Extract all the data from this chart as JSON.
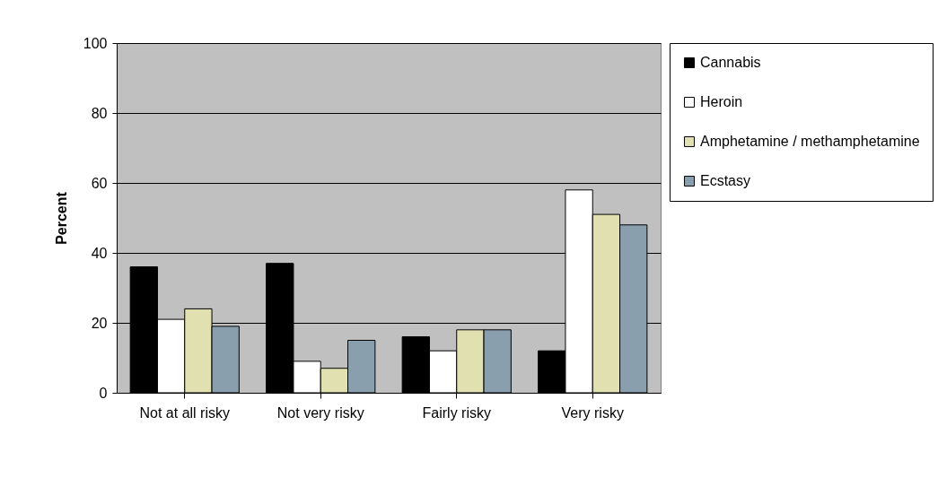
{
  "chart_data": {
    "type": "bar",
    "ylabel": "Percent",
    "categories": [
      "Not at all risky",
      "Not very risky",
      "Fairly risky",
      "Very risky"
    ],
    "series": [
      {
        "name": "Cannabis",
        "color": "#000000",
        "values": [
          36,
          37,
          16,
          12
        ]
      },
      {
        "name": "Heroin",
        "color": "#ffffff",
        "values": [
          21,
          9,
          12,
          58
        ]
      },
      {
        "name": "Amphetamine / methamphetamine",
        "color": "#e0e0b0",
        "values": [
          24,
          7,
          18,
          51
        ]
      },
      {
        "name": "Ecstasy",
        "color": "#8a9fae",
        "values": [
          19,
          15,
          18,
          48
        ]
      }
    ],
    "ylim": [
      0,
      100
    ],
    "yticks": [
      0,
      20,
      40,
      60,
      80,
      100
    ],
    "grid": "y",
    "legend": "right"
  }
}
